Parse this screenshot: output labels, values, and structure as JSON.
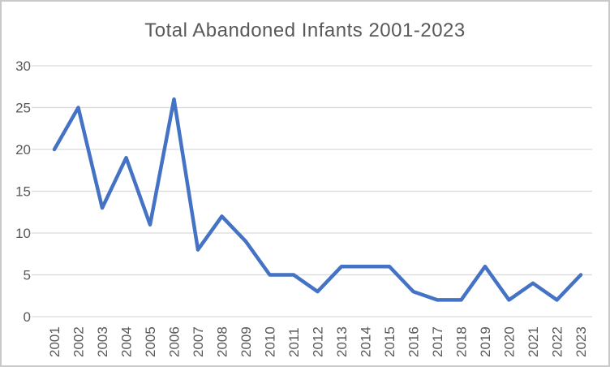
{
  "chart_data": {
    "type": "line",
    "title": "Total Abandoned Infants 2001-2023",
    "xlabel": "",
    "ylabel": "",
    "categories": [
      "2001",
      "2002",
      "2003",
      "2004",
      "2005",
      "2006",
      "2007",
      "2008",
      "2009",
      "2010",
      "2011",
      "2012",
      "2013",
      "2014",
      "2015",
      "2016",
      "2017",
      "2018",
      "2019",
      "2020",
      "2021",
      "2022",
      "2023"
    ],
    "values": [
      20,
      25,
      13,
      19,
      11,
      26,
      8,
      12,
      9,
      5,
      5,
      3,
      6,
      6,
      6,
      3,
      2,
      2,
      6,
      2,
      4,
      2,
      5
    ],
    "ylim": [
      0,
      30
    ],
    "yticks": [
      0,
      5,
      10,
      15,
      20,
      25,
      30
    ],
    "grid": true,
    "legend": "none",
    "series_name": "Total Abandoned Infants",
    "line_color": "#4472C4",
    "gridline_color": "#D9D9D9",
    "tick_label_color": "#595959",
    "title_color": "#595959",
    "border_color": "#C9C9C9",
    "background_color": "#FFFFFF"
  }
}
